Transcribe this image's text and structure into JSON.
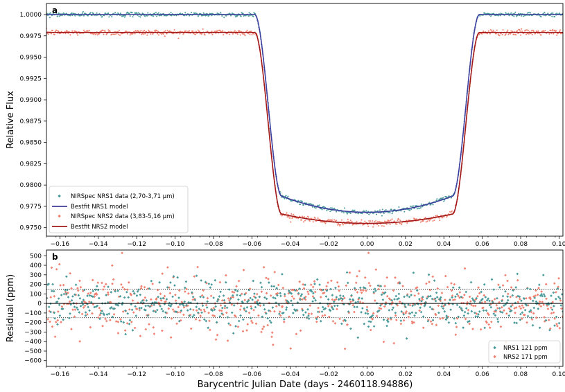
{
  "chart_data": [
    {
      "type": "scatter",
      "panel_label": "a",
      "ylabel": "Relative Flux",
      "xlim": [
        -0.167,
        0.102
      ],
      "ylim": [
        0.974,
        1.0013
      ],
      "x_ticks": [
        -0.16,
        -0.14,
        -0.12,
        -0.1,
        -0.08,
        -0.06,
        -0.04,
        -0.02,
        0.0,
        0.02,
        0.04,
        0.06,
        0.08,
        0.1
      ],
      "x_tick_labels": [
        "−0.16",
        "−0.14",
        "−0.12",
        "−0.10",
        "−0.08",
        "−0.06",
        "−0.04",
        "−0.02",
        "0.00",
        "0.02",
        "0.04",
        "0.06",
        "0.08",
        "0.10"
      ],
      "y_ticks": [
        0.975,
        0.9775,
        0.98,
        0.9825,
        0.985,
        0.9875,
        0.99,
        0.9925,
        0.995,
        0.9975,
        1.0
      ],
      "y_tick_labels": [
        "0.9750",
        "0.9775",
        "0.9800",
        "0.9825",
        "0.9850",
        "0.9875",
        "0.9900",
        "0.9925",
        "0.9950",
        "0.9975",
        "1.0000"
      ],
      "legend_position": "lower-left",
      "series": [
        {
          "name": "NIRSpec NRS1 data (2,70-3,71 μm)",
          "kind": "scatter",
          "color": "#4a9a9a",
          "model": {
            "baseline": 1.0,
            "depth": 0.0213,
            "ingress_x": [
              -0.0585,
              -0.0445
            ],
            "egress_x": [
              0.0445,
              0.0585
            ],
            "limb_curvature": 0.0019
          },
          "noise_ppm": 121
        },
        {
          "name": "Bestfit NRS1 model",
          "kind": "line",
          "color": "#3d3d9e",
          "model": {
            "baseline": 1.0,
            "depth": 0.0213,
            "ingress_x": [
              -0.0585,
              -0.0445
            ],
            "egress_x": [
              0.0445,
              0.0585
            ],
            "limb_curvature": 0.0019
          }
        },
        {
          "name": "NIRSpec NRS2 data (3,83-5,16 μm)",
          "kind": "scatter",
          "color": "#f08070",
          "model": {
            "baseline": 0.9979,
            "depth": 0.0213,
            "ingress_x": [
              -0.0585,
              -0.0445
            ],
            "egress_x": [
              0.0445,
              0.0585
            ],
            "limb_curvature": 0.0011
          },
          "noise_ppm": 171
        },
        {
          "name": "Bestfit NRS2 model",
          "kind": "line",
          "color": "#a01818",
          "model": {
            "baseline": 0.9979,
            "depth": 0.0213,
            "ingress_x": [
              -0.0585,
              -0.0445
            ],
            "egress_x": [
              0.0445,
              0.0585
            ],
            "limb_curvature": 0.0011
          }
        }
      ]
    },
    {
      "type": "scatter",
      "panel_label": "b",
      "ylabel": "Residual (ppm)",
      "xlabel": "Barycentric Julian Date (days - 2460118.94886)",
      "xlim": [
        -0.167,
        0.102
      ],
      "ylim": [
        -660,
        560
      ],
      "x_ticks": [
        -0.16,
        -0.14,
        -0.12,
        -0.1,
        -0.08,
        -0.06,
        -0.04,
        -0.02,
        0.0,
        0.02,
        0.04,
        0.06,
        0.08,
        0.1
      ],
      "x_tick_labels": [
        "−0.16",
        "−0.14",
        "−0.12",
        "−0.10",
        "−0.08",
        "−0.06",
        "−0.04",
        "−0.02",
        "0.00",
        "0.02",
        "0.04",
        "0.06",
        "0.08",
        "0.10"
      ],
      "y_ticks": [
        500,
        400,
        300,
        200,
        100,
        0,
        -100,
        -200,
        -300,
        -400,
        -500,
        -600
      ],
      "y_tick_labels": [
        "500",
        "400",
        "300",
        "200",
        "100",
        "0",
        "−100",
        "−200",
        "−300",
        "−400",
        "−500",
        "−600"
      ],
      "reference_lines": {
        "solid": [
          0
        ],
        "dotted": [
          150,
          -150
        ]
      },
      "legend_position": "lower-right",
      "series": [
        {
          "name": "NRS1 121 ppm",
          "kind": "scatter",
          "color": "#4a9a9a",
          "std_ppm": 121
        },
        {
          "name": "NRS2 171 ppm",
          "kind": "scatter",
          "color": "#f08070",
          "std_ppm": 171
        }
      ]
    }
  ]
}
